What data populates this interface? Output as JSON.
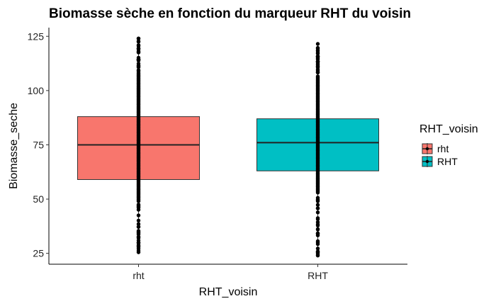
{
  "chart_data": {
    "type": "boxplot",
    "title": "Biomasse sèche en fonction du marqueur RHT du voisin",
    "xlabel": "RHT_voisin",
    "ylabel": "Biomasse_seche",
    "categories": [
      "rht",
      "RHT"
    ],
    "ylim": [
      20,
      129
    ],
    "yticks": [
      25,
      50,
      75,
      100,
      125
    ],
    "grid": false,
    "legend": {
      "title": "RHT_voisin",
      "position": "right",
      "entries": [
        "rht",
        "RHT"
      ]
    },
    "series": [
      {
        "category": "rht",
        "color": "#F8766D",
        "q1": 59,
        "median": 75,
        "q3": 88,
        "whisker_low": 25.5,
        "whisker_high": 124,
        "points_min": 25.5,
        "points_max": 124
      },
      {
        "category": "RHT",
        "color": "#00BFC4",
        "q1": 63,
        "median": 76,
        "q3": 87,
        "whisker_low": 24,
        "whisker_high": 121.5,
        "points_min": 24,
        "points_max": 121.5
      }
    ]
  }
}
